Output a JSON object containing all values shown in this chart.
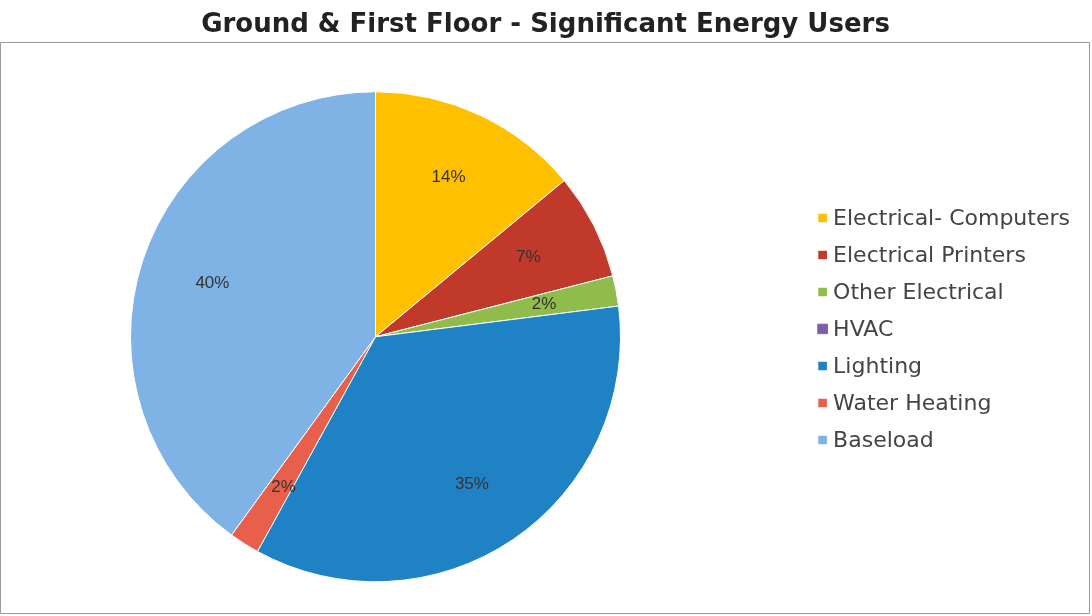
{
  "chart_data": {
    "type": "pie",
    "title": "Ground & First Floor - Significant Energy Users",
    "categories": [
      "Electrical- Computers",
      "Electrical Printers",
      "Other Electrical",
      "HVAC",
      "Lighting",
      "Water Heating",
      "Baseload"
    ],
    "values": [
      14,
      7,
      2,
      0,
      35,
      2,
      40
    ],
    "value_labels": [
      "14%",
      "7%",
      "2%",
      null,
      "35%",
      "2%",
      "40%"
    ],
    "colors": [
      "#ffc000",
      "#c0392b",
      "#8fbc4a",
      "#7b5fa8",
      "#1f82c4",
      "#e8604c",
      "#7fb2e5"
    ],
    "legend": "right"
  }
}
